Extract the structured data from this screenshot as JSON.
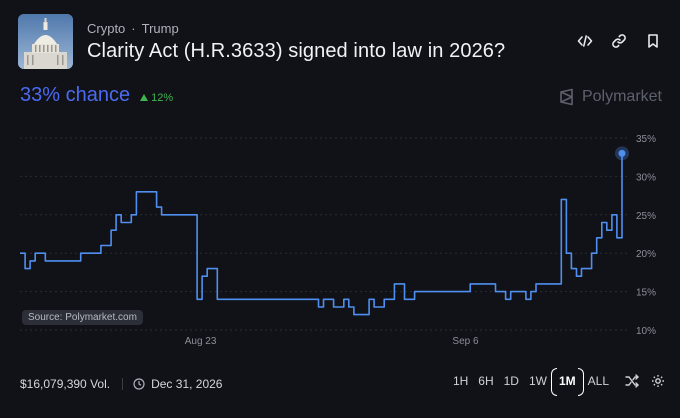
{
  "header": {
    "breadcrumb": [
      "Crypto",
      "Trump"
    ],
    "breadcrumb_separator": "·",
    "title": "Clarity Act (H.R.3633) signed into law in 2026?"
  },
  "summary": {
    "chance": "33% chance",
    "delta": "12%",
    "delta_color": "#3fb451",
    "chance_color": "#4b6af2"
  },
  "brand": {
    "name": "Polymarket"
  },
  "chart_data": {
    "type": "line",
    "source_label": "Source: Polymarket.com",
    "x_tick_labels": [
      "Aug 23",
      "Sep 6"
    ],
    "y_tick_labels": [
      "35%",
      "30%",
      "25%",
      "20%",
      "15%",
      "10%"
    ],
    "ylim": [
      10,
      35
    ],
    "grid": true,
    "line_color": "#4f8ff0",
    "series": [
      {
        "values": [
          20,
          18,
          19,
          20,
          20,
          19,
          19,
          19,
          19,
          19,
          19,
          19,
          20,
          20,
          20,
          20,
          21,
          21,
          23,
          25,
          24,
          24,
          25,
          28,
          28,
          28,
          28,
          26,
          25,
          25,
          25,
          25,
          25,
          25,
          25,
          14,
          17,
          18,
          18,
          14,
          14,
          14,
          14,
          14,
          14,
          14,
          14,
          14,
          14,
          14,
          14,
          14,
          14,
          14,
          14,
          14,
          14,
          14,
          14,
          13,
          14,
          14,
          13,
          13,
          14,
          13,
          12,
          12,
          12,
          14,
          13,
          13,
          14,
          14,
          16,
          16,
          14,
          14,
          15,
          15,
          15,
          15,
          15,
          15,
          15,
          15,
          15,
          15,
          15,
          16,
          16,
          16,
          16,
          16,
          15,
          15,
          14,
          15,
          15,
          15,
          14,
          15,
          16,
          16,
          16,
          16,
          16,
          27,
          20,
          18,
          17,
          18,
          18,
          20,
          22,
          24,
          23,
          25,
          22,
          33
        ]
      }
    ]
  },
  "footer": {
    "volume": "$16,079,390 Vol.",
    "end_date": "Dec 31, 2026",
    "ranges": [
      "1H",
      "6H",
      "1D",
      "1W",
      "1M",
      "ALL"
    ],
    "selected_range": "1M"
  }
}
